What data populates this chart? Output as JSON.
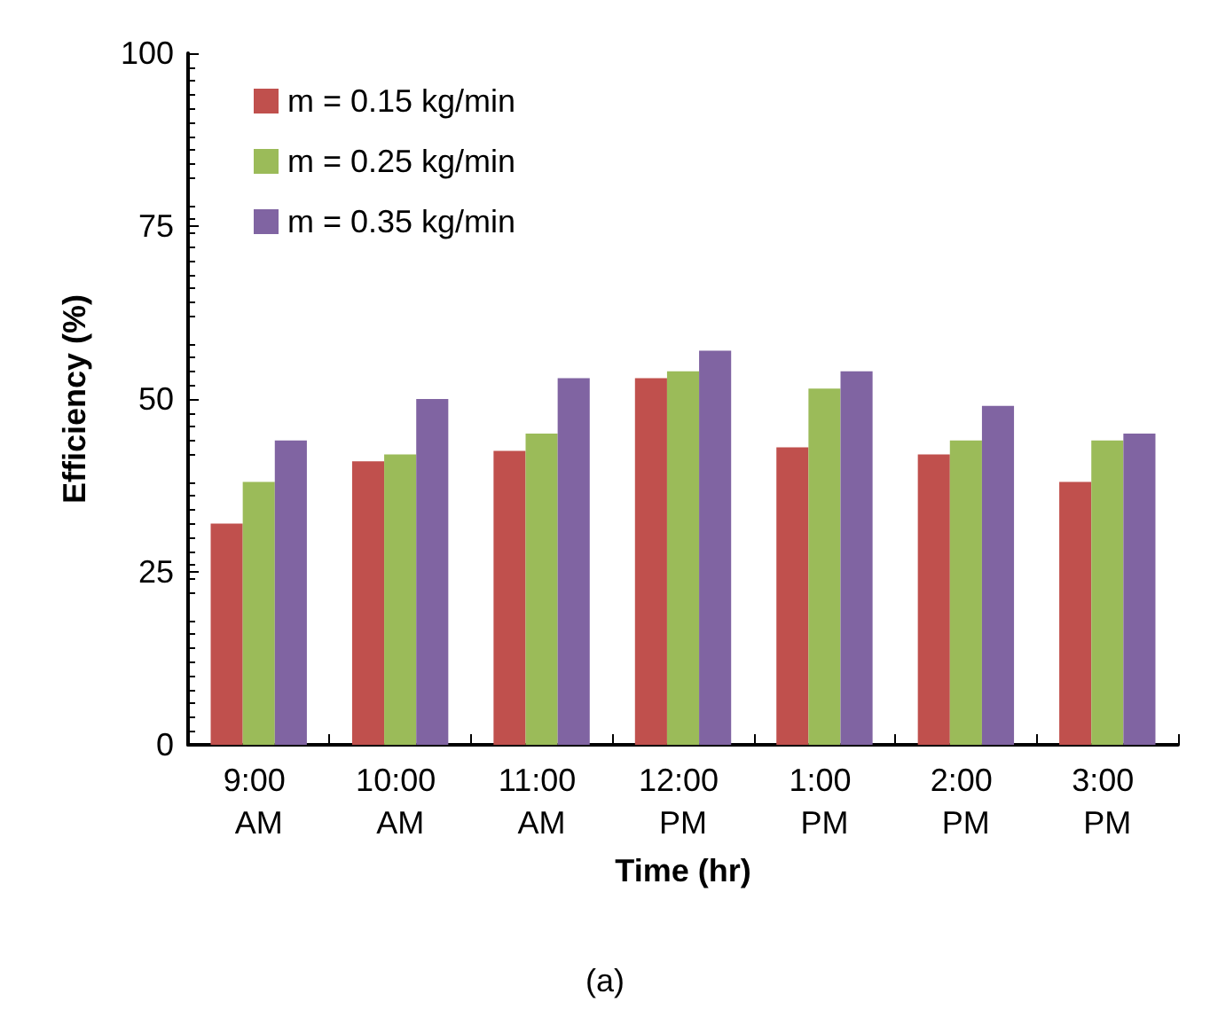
{
  "chart_data": {
    "type": "bar",
    "xlabel": "Time (hr)",
    "ylabel": "Efficiency (%)",
    "annotations": [
      "(a)"
    ],
    "categories": [
      "9:00 AM",
      "10:00 AM",
      "11:00 AM",
      "12:00 PM",
      "1:00 PM",
      "2:00 PM",
      "3:00 PM"
    ],
    "series": [
      {
        "name": "m = 0.15 kg/min",
        "color": "#c0504d",
        "values": [
          32,
          41,
          42.5,
          53,
          43,
          42,
          38
        ]
      },
      {
        "name": "m = 0.25 kg/min",
        "color": "#9bbb59",
        "values": [
          38,
          42,
          45,
          54,
          51.5,
          44,
          44
        ]
      },
      {
        "name": "m = 0.35 kg/min",
        "color": "#8064a2",
        "values": [
          44,
          50,
          53,
          57,
          54,
          49,
          45
        ]
      }
    ],
    "ylim": [
      0,
      100
    ],
    "yticks": [
      0,
      25,
      50,
      75,
      100
    ],
    "grid": false,
    "legend": "top left"
  }
}
